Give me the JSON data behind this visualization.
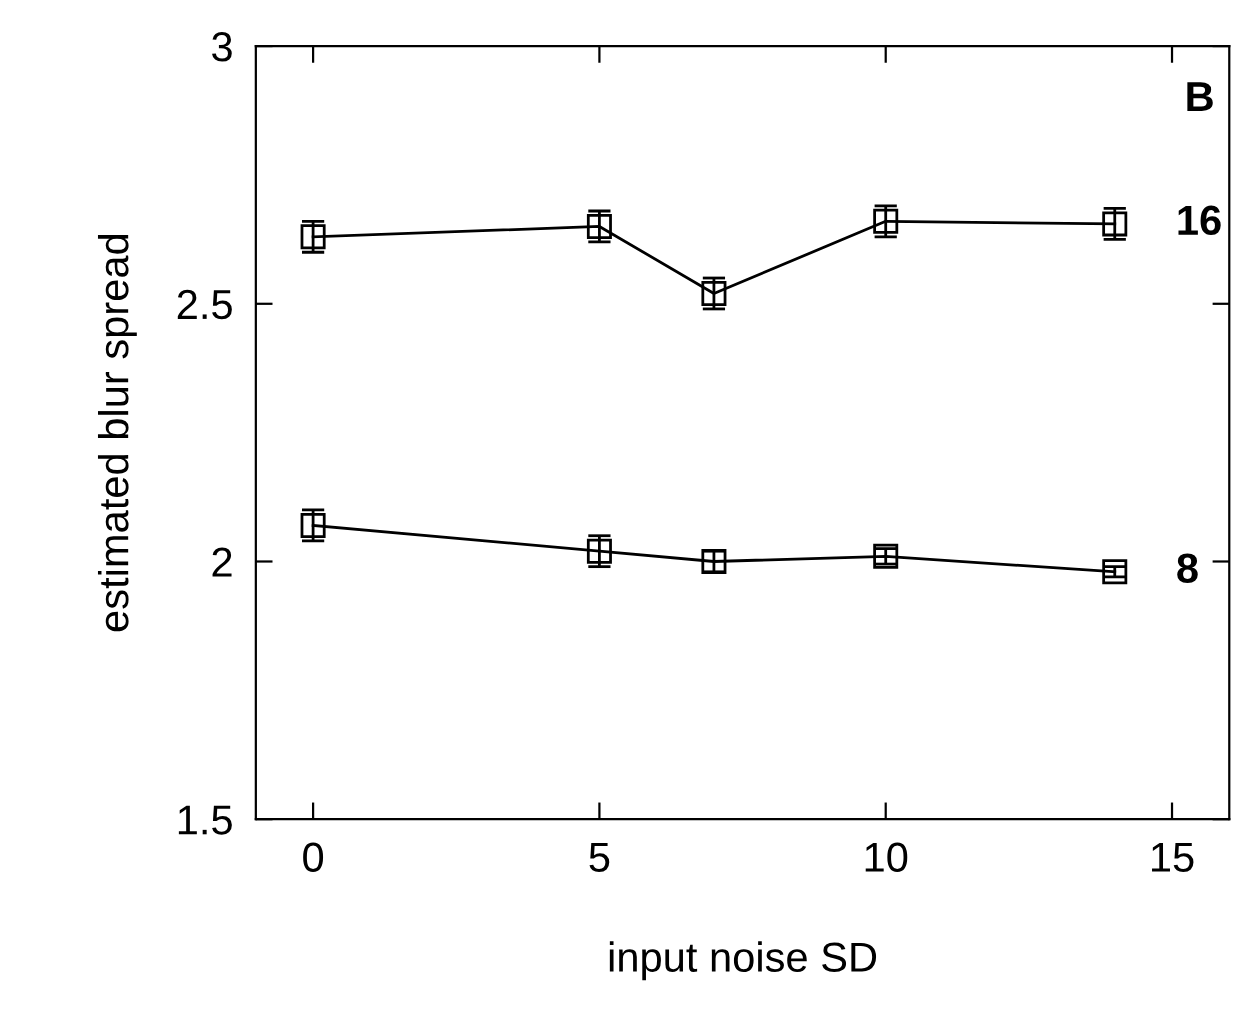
{
  "chart_data": {
    "type": "line",
    "xlabel": "input noise SD",
    "ylabel": "estimated blur spread",
    "x": [
      0,
      5,
      7,
      10,
      14
    ],
    "series": [
      {
        "name": "16",
        "color": "#000000",
        "values": [
          2.63,
          2.65,
          2.52,
          2.66,
          2.655
        ],
        "errors": [
          0.03,
          0.03,
          0.03,
          0.03,
          0.03
        ]
      },
      {
        "name": "8",
        "color": "#000000",
        "values": [
          2.07,
          2.02,
          2.0,
          2.01,
          1.98
        ],
        "errors": [
          0.03,
          0.03,
          0.02,
          0.015,
          0.01
        ]
      }
    ],
    "annotations": [
      "B"
    ],
    "xlim": [
      -1,
      16
    ],
    "ylim": [
      1.5,
      3
    ],
    "xticks": [
      0,
      5,
      10,
      15
    ],
    "yticks": [
      1.5,
      2,
      2.5,
      3
    ],
    "marker": "square",
    "line_style": "solid",
    "grid": false,
    "legend": "right"
  }
}
